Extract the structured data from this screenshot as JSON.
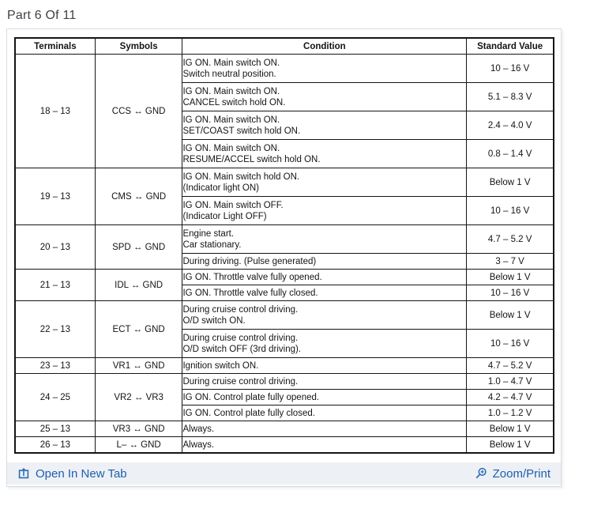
{
  "page": {
    "title": "Part 6 Of 11"
  },
  "colors": {
    "link_blue": "#1d5fad",
    "footer_background": "#edf0f5",
    "table_border": "#151515",
    "title_text": "#3d4349"
  },
  "table": {
    "headers": [
      "Terminals",
      "Symbols",
      "Condition",
      "Standard Value"
    ],
    "groups": [
      {
        "terminals": "18 – 13",
        "symbol": "CCS ↔ GND",
        "rows": [
          {
            "condition": [
              "IG ON. Main switch ON.",
              "Switch neutral position."
            ],
            "value": "10 – 16 V"
          },
          {
            "condition": [
              "IG ON. Main switch ON.",
              "CANCEL switch hold ON."
            ],
            "value": "5.1 – 8.3 V"
          },
          {
            "condition": [
              "IG ON. Main switch ON.",
              "SET/COAST switch hold ON."
            ],
            "value": "2.4 – 4.0 V"
          },
          {
            "condition": [
              "IG ON. Main switch ON.",
              "RESUME/ACCEL switch hold ON."
            ],
            "value": "0.8 – 1.4 V"
          }
        ]
      },
      {
        "terminals": "19 – 13",
        "symbol": "CMS ↔ GND",
        "rows": [
          {
            "condition": [
              "IG ON. Main switch hold ON.",
              "(Indicator light ON)"
            ],
            "value": "Below 1 V"
          },
          {
            "condition": [
              "IG ON. Main switch OFF.",
              "(Indicator Light OFF)"
            ],
            "value": "10 – 16 V"
          }
        ]
      },
      {
        "terminals": "20 – 13",
        "symbol": "SPD ↔ GND",
        "rows": [
          {
            "condition": [
              "Engine start.",
              "Car stationary."
            ],
            "value": "4.7 – 5.2 V"
          },
          {
            "condition": [
              "During driving. (Pulse generated)"
            ],
            "value": "3 – 7 V"
          }
        ]
      },
      {
        "terminals": "21 – 13",
        "symbol": "IDL ↔ GND",
        "rows": [
          {
            "condition": [
              "IG ON. Throttle valve fully opened."
            ],
            "value": "Below 1 V"
          },
          {
            "condition": [
              "IG ON. Throttle valve fully closed."
            ],
            "value": "10 – 16 V"
          }
        ]
      },
      {
        "terminals": "22 – 13",
        "symbol": "ECT ↔ GND",
        "rows": [
          {
            "condition": [
              "During cruise control driving.",
              "O/D switch ON."
            ],
            "value": "Below 1 V"
          },
          {
            "condition": [
              "During cruise control driving.",
              "O/D switch OFF (3rd driving)."
            ],
            "value": "10 – 16 V"
          }
        ]
      },
      {
        "terminals": "23 – 13",
        "symbol": "VR1 ↔ GND",
        "rows": [
          {
            "condition": [
              "Ignition switch ON."
            ],
            "value": "4.7 – 5.2 V"
          }
        ]
      },
      {
        "terminals": "24 – 25",
        "symbol": "VR2 ↔ VR3",
        "rows": [
          {
            "condition": [
              "During cruise control driving."
            ],
            "value": "1.0 – 4.7 V"
          },
          {
            "condition": [
              "IG ON. Control plate fully opened."
            ],
            "value": "4.2 – 4.7 V"
          },
          {
            "condition": [
              "IG ON. Control plate fully closed."
            ],
            "value": "1.0 – 1.2 V"
          }
        ]
      },
      {
        "terminals": "25 – 13",
        "symbol": "VR3 ↔ GND",
        "rows": [
          {
            "condition": [
              "Always."
            ],
            "value": "Below 1 V"
          }
        ]
      },
      {
        "terminals": "26 – 13",
        "symbol": "L– ↔ GND",
        "rows": [
          {
            "condition": [
              "Always."
            ],
            "value": "Below 1 V"
          }
        ]
      }
    ]
  },
  "footer": {
    "open_in_new_tab": {
      "label": "Open In New Tab",
      "icon": "open-in-new-tab-icon"
    },
    "zoom_print": {
      "label": "Zoom/Print",
      "icon": "magnifier-plus-icon"
    }
  }
}
